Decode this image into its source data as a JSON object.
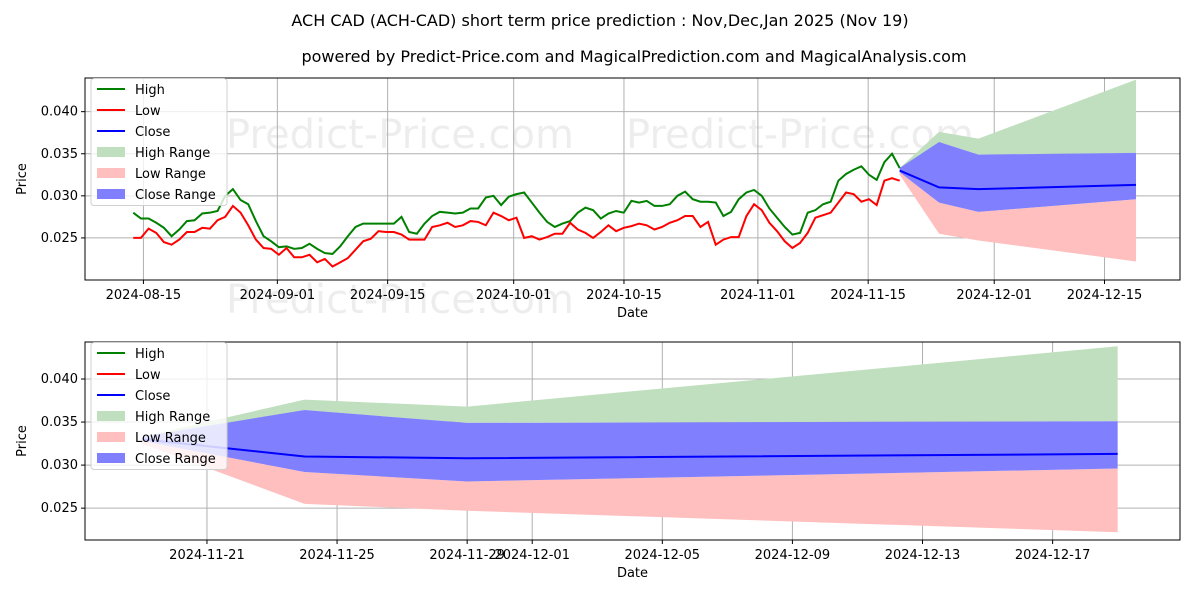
{
  "title": "ACH CAD (ACH-CAD) short term price prediction : Nov,Dec,Jan 2025 (Nov 19)",
  "subtitle": "powered by Predict-Price.com and MagicalPrediction.com and MagicalAnalysis.com",
  "watermark": "Predict-Price.com",
  "colors": {
    "high": "#008000",
    "low": "#ff0000",
    "close": "#0000ff",
    "high_range": "#c0dfbf",
    "low_range": "#ffbfbf",
    "close_range": "#8080ff"
  },
  "chart_data": [
    {
      "type": "line",
      "xlabel": "Date",
      "ylabel": "Price",
      "xlim": [
        "2024-08-07T14:00",
        "2024-12-24T14:00"
      ],
      "ylim": [
        0.02,
        0.044
      ],
      "yticks": [
        "0.025",
        "0.030",
        "0.035",
        "0.040"
      ],
      "xticks": [
        "2024-08-15",
        "2024-09-01",
        "2024-09-15",
        "2024-10-01",
        "2024-10-15",
        "2024-11-01",
        "2024-11-15",
        "2024-12-01",
        "2024-12-15"
      ],
      "grid": true,
      "legend": {
        "position": "top-left",
        "entries": [
          "High",
          "Low",
          "Close",
          "High Range",
          "Low Range",
          "Close Range"
        ]
      },
      "history": {
        "x_start": "2024-08-13T17:00",
        "x_end": "2024-11-19T00:00",
        "high": [
          0.028,
          0.0273,
          0.0273,
          0.0268,
          0.0262,
          0.0252,
          0.026,
          0.027,
          0.0271,
          0.0279,
          0.028,
          0.0282,
          0.03,
          0.0308,
          0.0295,
          0.029,
          0.027,
          0.0252,
          0.0246,
          0.0239,
          0.024,
          0.0237,
          0.0238,
          0.0243,
          0.0237,
          0.0232,
          0.0231,
          0.024,
          0.0252,
          0.0263,
          0.0267,
          0.0267,
          0.0267,
          0.0267,
          0.0267,
          0.0275,
          0.0257,
          0.0255,
          0.0267,
          0.0276,
          0.0281,
          0.028,
          0.0279,
          0.028,
          0.0285,
          0.0285,
          0.0298,
          0.03,
          0.0289,
          0.0299,
          0.0302,
          0.0304,
          0.0292,
          0.028,
          0.0269,
          0.0263,
          0.0267,
          0.027,
          0.028,
          0.0286,
          0.0283,
          0.0273,
          0.0279,
          0.0282,
          0.028,
          0.0294,
          0.0292,
          0.0294,
          0.0288,
          0.0288,
          0.029,
          0.03,
          0.0305,
          0.0296,
          0.0293,
          0.0293,
          0.0292,
          0.0276,
          0.0281,
          0.0296,
          0.0304,
          0.0307,
          0.03,
          0.0285,
          0.0274,
          0.0263,
          0.0254,
          0.0256,
          0.028,
          0.0283,
          0.029,
          0.0293,
          0.0318,
          0.0326,
          0.0331,
          0.0335,
          0.0325,
          0.0319,
          0.034,
          0.035,
          0.0333
        ],
        "low": [
          0.025,
          0.025,
          0.0261,
          0.0256,
          0.0245,
          0.0242,
          0.0248,
          0.0257,
          0.0257,
          0.0262,
          0.0261,
          0.0271,
          0.0275,
          0.0288,
          0.028,
          0.0265,
          0.0248,
          0.0238,
          0.0237,
          0.023,
          0.0238,
          0.0227,
          0.0227,
          0.023,
          0.0221,
          0.0225,
          0.0216,
          0.0221,
          0.0226,
          0.0236,
          0.0246,
          0.0249,
          0.0258,
          0.0257,
          0.0257,
          0.0254,
          0.0248,
          0.0248,
          0.0248,
          0.0263,
          0.0265,
          0.0268,
          0.0263,
          0.0265,
          0.027,
          0.0269,
          0.0265,
          0.028,
          0.0276,
          0.0271,
          0.0274,
          0.025,
          0.0252,
          0.0248,
          0.0251,
          0.0255,
          0.0255,
          0.0268,
          0.026,
          0.0256,
          0.025,
          0.0257,
          0.0265,
          0.0258,
          0.0262,
          0.0264,
          0.0267,
          0.0265,
          0.026,
          0.0263,
          0.0268,
          0.0271,
          0.0276,
          0.0276,
          0.0263,
          0.0269,
          0.0242,
          0.0248,
          0.0251,
          0.0251,
          0.0276,
          0.029,
          0.0283,
          0.0268,
          0.0258,
          0.0246,
          0.0238,
          0.0244,
          0.0256,
          0.0274,
          0.0277,
          0.028,
          0.0292,
          0.0304,
          0.0302,
          0.0293,
          0.0296,
          0.0289,
          0.0318,
          0.0321,
          0.0318
        ]
      },
      "forecast": {
        "dates": [
          "2024-11-19",
          "2024-11-24",
          "2024-11-29",
          "2024-12-19"
        ],
        "close": [
          0.033,
          0.031,
          0.0308,
          0.0313
        ],
        "high_range": [
          [
            0.033,
            0.0333
          ],
          [
            0.0364,
            0.0376
          ],
          [
            0.0349,
            0.0368
          ],
          [
            0.0351,
            0.0438
          ]
        ],
        "close_range": [
          [
            0.0328,
            0.0333
          ],
          [
            0.0292,
            0.0364
          ],
          [
            0.0281,
            0.0349
          ],
          [
            0.0296,
            0.0351
          ]
        ],
        "low_range": [
          [
            0.0325,
            0.0328
          ],
          [
            0.0255,
            0.0292
          ],
          [
            0.0247,
            0.0281
          ],
          [
            0.0222,
            0.0296
          ]
        ]
      }
    },
    {
      "type": "line",
      "xlabel": "Date",
      "ylabel": "Price",
      "xlim": [
        "2024-11-17T06:00",
        "2024-12-20T22:00"
      ],
      "ylim": [
        0.0213,
        0.0443
      ],
      "yticks": [
        "0.025",
        "0.030",
        "0.035",
        "0.040"
      ],
      "xticks": [
        "2024-11-21",
        "2024-11-25",
        "2024-11-29",
        "2024-12-01",
        "2024-12-05",
        "2024-12-09",
        "2024-12-13",
        "2024-12-17"
      ],
      "grid": true,
      "legend": {
        "position": "top-left",
        "entries": [
          "High",
          "Low",
          "Close",
          "High Range",
          "Low Range",
          "Close Range"
        ]
      }
    }
  ]
}
